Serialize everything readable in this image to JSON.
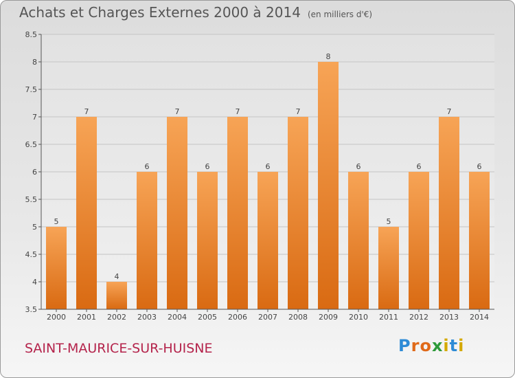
{
  "header": {
    "title": "Achats et Charges Externes 2000 à 2014",
    "unit": "(en milliers d'€)"
  },
  "commune": "SAINT-MAURICE-SUR-HUISNE",
  "logo": {
    "text": "Proxiti",
    "letters": [
      "P",
      "r",
      "o",
      "x",
      "i",
      "t",
      "i"
    ],
    "colors": [
      "#2e8bd6",
      "#e06a1a",
      "#e06a1a",
      "#2e9a3a",
      "#d4a900",
      "#2e8bd6",
      "#d4a900"
    ]
  },
  "chart_data": {
    "type": "bar",
    "title": "Achats et Charges Externes 2000 à 2014",
    "subtitle": "(en milliers d'€)",
    "categories": [
      "2000",
      "2001",
      "2002",
      "2003",
      "2004",
      "2005",
      "2006",
      "2007",
      "2008",
      "2009",
      "2010",
      "2011",
      "2012",
      "2013",
      "2014"
    ],
    "values": [
      5,
      7,
      4,
      6,
      7,
      6,
      7,
      6,
      7,
      8,
      6,
      5,
      6,
      7,
      6
    ],
    "ylim": [
      3.5,
      8.5
    ],
    "yticks": [
      "3.5",
      "4",
      "4.5",
      "5",
      "5.5",
      "6",
      "6.5",
      "7",
      "7.5",
      "8",
      "8.5"
    ],
    "grid": true,
    "bar_color": "#f08a2a"
  }
}
